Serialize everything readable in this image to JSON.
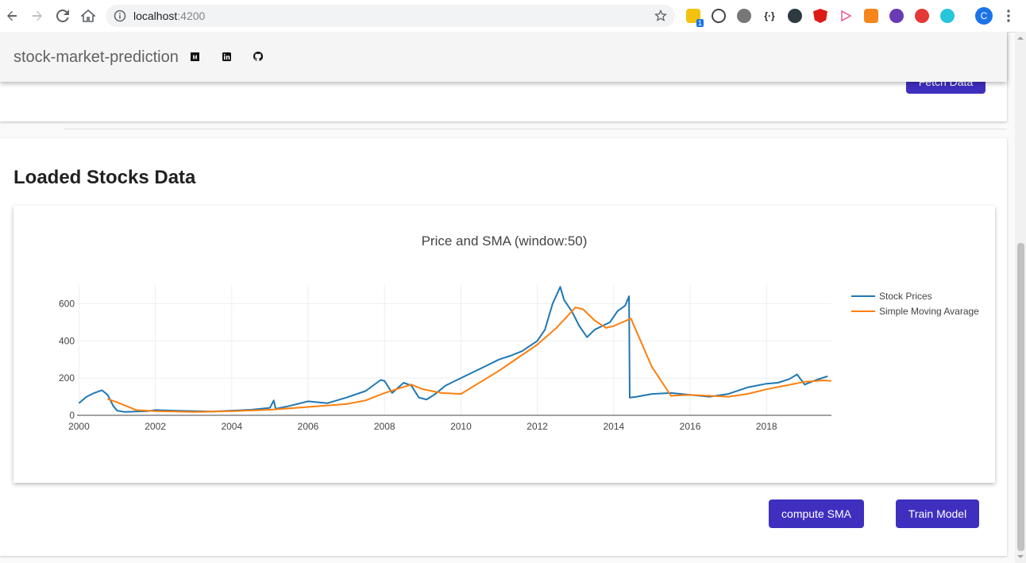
{
  "browser": {
    "url_host": "localhost",
    "url_port": ":4200",
    "profile_initial": "C",
    "extension_badge": "1",
    "colors": {
      "profile": "#1a73e8",
      "badge": "#1a73e8"
    }
  },
  "toolbar": {
    "title": "stock-market-prediction",
    "icons": [
      "medium-icon",
      "linkedin-icon",
      "github-icon"
    ]
  },
  "top_card": {
    "fetch_label": "Fetch Data"
  },
  "section": {
    "title": "Loaded Stocks Data"
  },
  "actions": {
    "compute_sma": "compute SMA",
    "train_model": "Train Model"
  },
  "colors": {
    "accent": "#3f2fbf",
    "stock": "#1f77b4",
    "sma": "#ff7f0e"
  },
  "chart_data": {
    "type": "line",
    "title": "Price and SMA (window:50)",
    "xlabel": "",
    "ylabel": "",
    "xlim": [
      1999.95,
      2019.7
    ],
    "ylim": [
      0,
      700
    ],
    "x_ticks": [
      "2000",
      "2002",
      "2004",
      "2006",
      "2008",
      "2010",
      "2012",
      "2014",
      "2016",
      "2018"
    ],
    "y_ticks": [
      "0",
      "200",
      "400",
      "600"
    ],
    "grid": true,
    "legend_position": "top-right",
    "series": [
      {
        "name": "Stock Prices",
        "color": "#1f77b4",
        "x": [
          2000.0,
          2000.2,
          2000.4,
          2000.6,
          2000.75,
          2000.9,
          2001.0,
          2001.2,
          2001.5,
          2001.8,
          2002.0,
          2002.5,
          2003.0,
          2003.5,
          2004.0,
          2004.5,
          2005.0,
          2005.1,
          2005.15,
          2005.5,
          2006.0,
          2006.5,
          2007.0,
          2007.5,
          2007.9,
          2008.0,
          2008.2,
          2008.5,
          2008.7,
          2008.9,
          2009.1,
          2009.3,
          2009.6,
          2010.0,
          2010.3,
          2010.6,
          2011.0,
          2011.3,
          2011.6,
          2012.0,
          2012.2,
          2012.4,
          2012.6,
          2012.7,
          2012.9,
          2013.1,
          2013.3,
          2013.5,
          2013.7,
          2013.9,
          2014.1,
          2014.3,
          2014.4,
          2014.42,
          2014.6,
          2015.0,
          2015.5,
          2016.0,
          2016.5,
          2017.0,
          2017.5,
          2018.0,
          2018.3,
          2018.6,
          2018.8,
          2019.0,
          2019.3,
          2019.6
        ],
        "y": [
          65,
          100,
          120,
          135,
          110,
          50,
          25,
          18,
          20,
          22,
          28,
          25,
          22,
          20,
          25,
          30,
          40,
          80,
          35,
          50,
          75,
          65,
          95,
          130,
          190,
          185,
          120,
          175,
          160,
          95,
          85,
          110,
          160,
          200,
          230,
          260,
          300,
          320,
          345,
          400,
          460,
          600,
          690,
          620,
          560,
          480,
          420,
          460,
          480,
          500,
          560,
          590,
          640,
          95,
          100,
          115,
          120,
          110,
          100,
          115,
          150,
          170,
          175,
          195,
          220,
          165,
          190,
          210
        ]
      },
      {
        "name": "Simple Moving Avarage",
        "color": "#ff7f0e",
        "x": [
          2000.75,
          2001.0,
          2001.5,
          2002.0,
          2003.0,
          2004.0,
          2005.0,
          2006.0,
          2007.0,
          2007.5,
          2008.0,
          2008.7,
          2009.0,
          2009.5,
          2010.0,
          2011.0,
          2012.0,
          2012.5,
          2013.0,
          2013.2,
          2013.5,
          2013.8,
          2014.0,
          2014.45,
          2015.0,
          2015.5,
          2016.0,
          2016.5,
          2017.0,
          2017.5,
          2018.0,
          2018.5,
          2019.0,
          2019.5,
          2019.7
        ],
        "y": [
          88,
          70,
          28,
          22,
          18,
          22,
          30,
          45,
          60,
          80,
          120,
          165,
          140,
          120,
          115,
          240,
          380,
          470,
          580,
          570,
          510,
          470,
          480,
          520,
          260,
          105,
          110,
          105,
          100,
          115,
          140,
          160,
          180,
          188,
          185
        ]
      }
    ]
  }
}
